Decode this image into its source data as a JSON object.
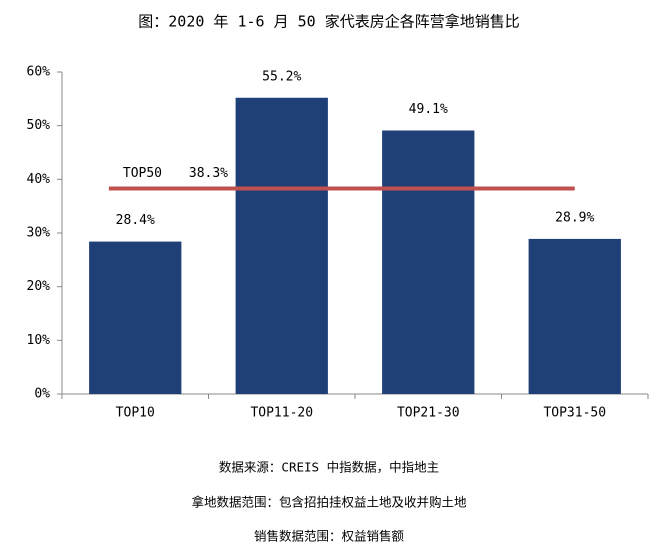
{
  "chart_data": {
    "type": "bar",
    "title": "图：2020 年 1-6 月 50 家代表房企各阵营拿地销售比",
    "categories": [
      "TOP10",
      "TOP11-20",
      "TOP21-30",
      "TOP31-50"
    ],
    "values": [
      28.4,
      55.2,
      49.1,
      28.9
    ],
    "value_labels": [
      "28.4%",
      "55.2%",
      "49.1%",
      "28.9%"
    ],
    "color": "#1f3f77",
    "ylim": [
      0,
      60
    ],
    "yticks": [
      {
        "value": 0,
        "label": "0%"
      },
      {
        "value": 10,
        "label": "10%"
      },
      {
        "value": 20,
        "label": "20%"
      },
      {
        "value": 30,
        "label": "30%"
      },
      {
        "value": 40,
        "label": "40%"
      },
      {
        "value": 50,
        "label": "50%"
      },
      {
        "value": 60,
        "label": "60%"
      }
    ],
    "reference_line": {
      "name": "TOP50",
      "value": 38.3,
      "value_label": "38.3%",
      "color": "#c0504d"
    },
    "notes": [
      "数据来源：CREIS 中指数据，中指地主",
      "拿地数据范围：包含招拍挂权益土地及收并购土地",
      "销售数据范围：权益销售额"
    ]
  }
}
